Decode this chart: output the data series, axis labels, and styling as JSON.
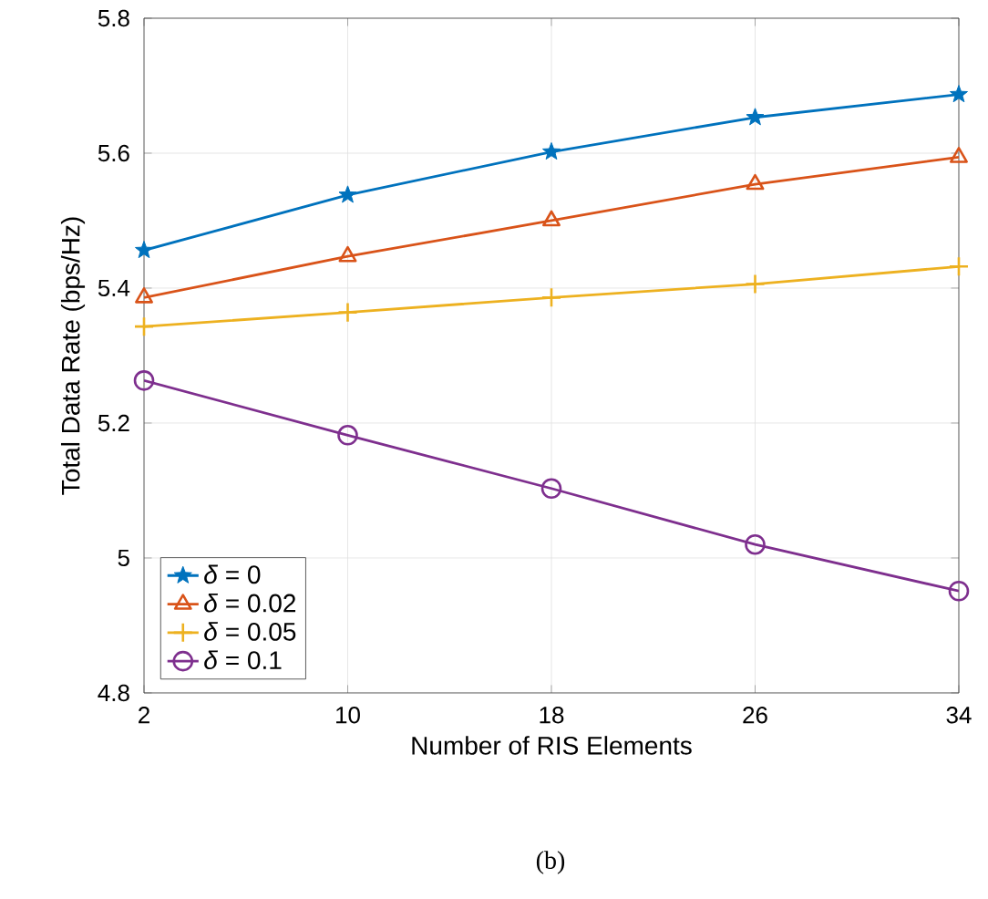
{
  "chart_data": {
    "type": "line",
    "xlabel": "Number of RIS Elements",
    "ylabel": "Total Data Rate (bps/Hz)",
    "x": [
      2,
      10,
      18,
      26,
      34
    ],
    "series": [
      {
        "name": "*δ* = 0",
        "color": "#0072bd",
        "marker": "star",
        "values": [
          5.456,
          5.538,
          5.602,
          5.653,
          5.687
        ]
      },
      {
        "name": "*δ* = 0.02",
        "color": "#d95319",
        "marker": "triangle",
        "values": [
          5.386,
          5.447,
          5.5,
          5.554,
          5.594
        ]
      },
      {
        "name": "*δ* = 0.05",
        "color": "#edb120",
        "marker": "cross",
        "values": [
          5.343,
          5.364,
          5.386,
          5.406,
          5.432
        ]
      },
      {
        "name": "*δ* = 0.1",
        "color": "#7e2f8e",
        "marker": "circle",
        "values": [
          5.263,
          5.182,
          5.103,
          5.02,
          4.951
        ]
      }
    ],
    "xlim": [
      2,
      34
    ],
    "xticks": [
      2,
      10,
      18,
      26,
      34
    ],
    "ylim": [
      4.8,
      5.8
    ],
    "yticks": [
      4.8,
      5,
      5.2,
      5.4,
      5.6,
      5.8
    ],
    "grid": true,
    "legend": "bottom left",
    "line_style": "solid",
    "annotations": [
      "(b)"
    ]
  }
}
